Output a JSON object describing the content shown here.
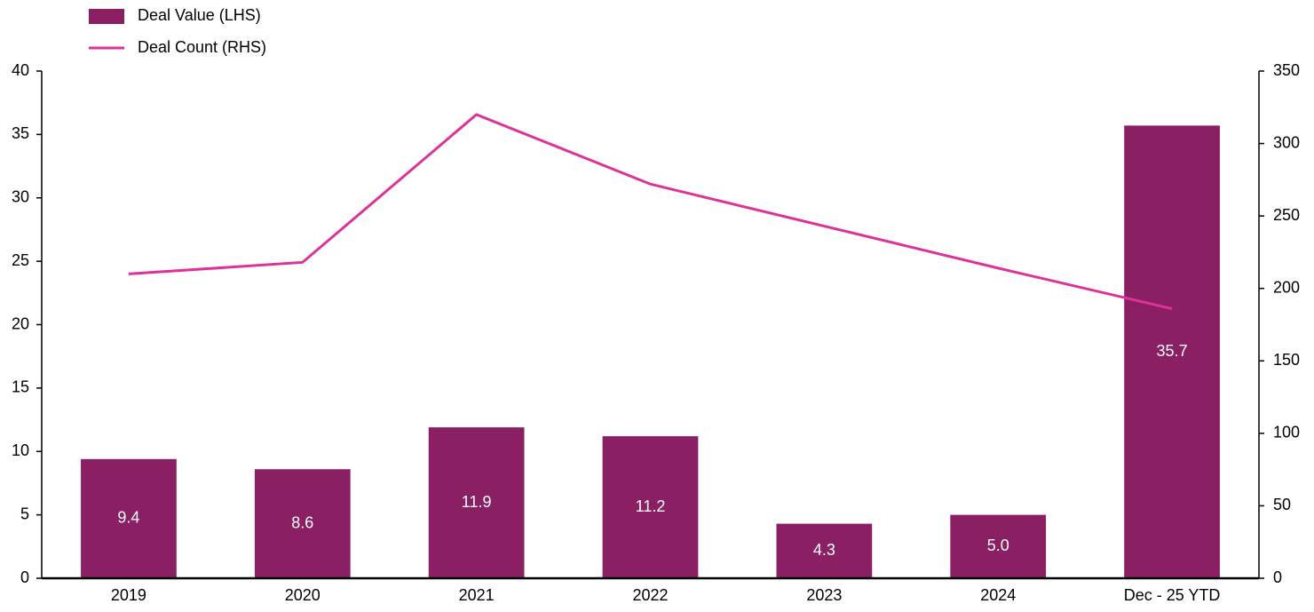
{
  "chart_data": {
    "type": "bar-line",
    "categories": [
      "2019",
      "2020",
      "2021",
      "2022",
      "2023",
      "2024",
      "Dec - 25 YTD"
    ],
    "series": [
      {
        "name": "Deal Value (LHS)",
        "type": "bar",
        "color": "#8b1f63",
        "values": [
          9.4,
          8.6,
          11.9,
          11.2,
          4.3,
          5.0,
          35.7
        ],
        "value_labels": [
          "9.4",
          "8.6",
          "11.9",
          "11.2",
          "4.3",
          "5.0",
          "35.7"
        ]
      },
      {
        "name": "Deal Count (RHS)",
        "type": "line",
        "axis": "y2",
        "color": "#dd3399",
        "values": [
          210,
          218,
          320,
          272,
          243,
          214,
          186
        ]
      }
    ],
    "ylim": [
      0,
      40
    ],
    "yticks": [
      0,
      5,
      10,
      15,
      20,
      25,
      30,
      35,
      40
    ],
    "y2lim": [
      0,
      350
    ],
    "y2ticks": [
      0,
      50,
      100,
      150,
      200,
      250,
      300,
      350
    ],
    "legend": "top-left"
  }
}
